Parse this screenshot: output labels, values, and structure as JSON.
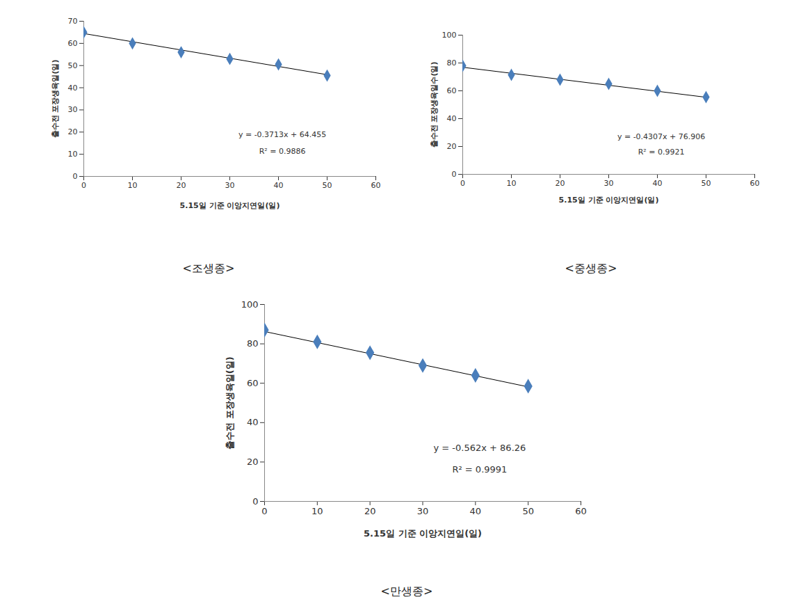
{
  "chart_data": [
    {
      "type": "scatter",
      "caption": "<조생종>",
      "x_label": "5.15일 기준 이앙지연일(일)",
      "y_label": "출수전 포장생육일(일)",
      "x": [
        0,
        10,
        20,
        30,
        40,
        50
      ],
      "values": [
        65,
        60,
        56,
        53,
        50.5,
        45.5
      ],
      "color": "#4a7ebb",
      "marker": "diamond",
      "trendline": {
        "slope": -0.3713,
        "intercept": 64.455
      },
      "annotations": [
        "y = -0.3713x + 64.455",
        "R² = 0.9886"
      ],
      "xlim": [
        0,
        60
      ],
      "xticks": [
        0,
        10,
        20,
        30,
        40,
        50,
        60
      ],
      "ylim": [
        0,
        70
      ],
      "yticks": [
        0,
        10,
        20,
        30,
        40,
        50,
        60,
        70
      ],
      "grid": false
    },
    {
      "type": "scatter",
      "caption": "<중생종>",
      "x_label": "5.15일 기준 이앙지연일(일)",
      "y_label": "출수전 포장생육일수(일)",
      "x": [
        0,
        10,
        20,
        30,
        40,
        50
      ],
      "values": [
        78,
        71.5,
        68,
        65,
        60,
        55.5
      ],
      "color": "#4a7ebb",
      "marker": "diamond",
      "trendline": {
        "slope": -0.4307,
        "intercept": 76.906
      },
      "annotations": [
        "y = -0.4307x + 76.906",
        "R² = 0.9921"
      ],
      "xlim": [
        0,
        60
      ],
      "xticks": [
        0,
        10,
        20,
        30,
        40,
        50,
        60
      ],
      "ylim": [
        0,
        100
      ],
      "yticks": [
        0,
        20,
        40,
        60,
        80,
        100
      ],
      "grid": false
    },
    {
      "type": "scatter",
      "caption": "<만생종>",
      "x_label": "5.15일 기준 이앙지연일(일)",
      "y_label": "출수전 포장생육일(일)",
      "x": [
        0,
        10,
        20,
        30,
        40,
        50
      ],
      "values": [
        87,
        81,
        75.5,
        69,
        64,
        58.5
      ],
      "color": "#4a7ebb",
      "marker": "diamond",
      "trendline": {
        "slope": -0.562,
        "intercept": 86.26
      },
      "annotations": [
        "y = -0.562x + 86.26",
        "R² = 0.9991"
      ],
      "xlim": [
        0,
        60
      ],
      "xticks": [
        0,
        10,
        20,
        30,
        40,
        50,
        60
      ],
      "ylim": [
        0,
        100
      ],
      "yticks": [
        0,
        20,
        40,
        60,
        80,
        100
      ],
      "grid": false
    }
  ]
}
